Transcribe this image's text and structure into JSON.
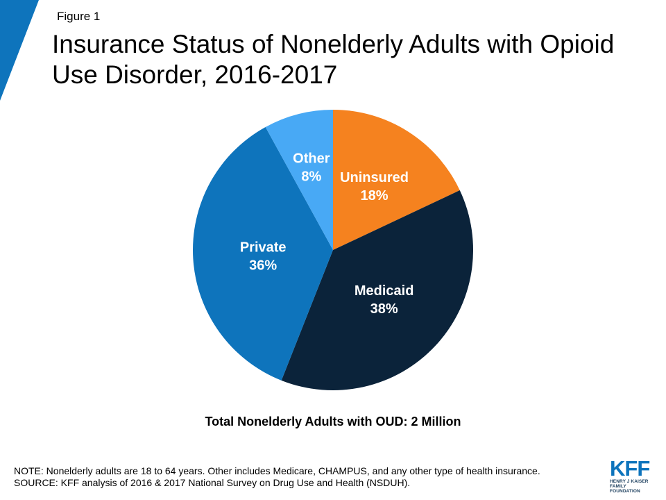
{
  "colors": {
    "accent": "#0e74bc",
    "uninsured": "#f5821f",
    "medicaid": "#0b233a",
    "private": "#0e74bc",
    "other": "#48a9f5"
  },
  "figure_label": "Figure 1",
  "chart_data": {
    "type": "pie",
    "title": "Insurance Status of Nonelderly Adults with Opioid Use Disorder, 2016-2017",
    "slices": [
      {
        "name": "Uninsured",
        "value": 18,
        "label": "18%",
        "color": "#f5821f"
      },
      {
        "name": "Medicaid",
        "value": 38,
        "label": "38%",
        "color": "#0b233a"
      },
      {
        "name": "Private",
        "value": 36,
        "label": "36%",
        "color": "#0e74bc"
      },
      {
        "name": "Other",
        "value": 8,
        "label": "8%",
        "color": "#48a9f5"
      }
    ],
    "start_angle": "12 o'clock",
    "direction": "clockwise",
    "legend": "none"
  },
  "total_label": "Total Nonelderly Adults with OUD: 2 Million",
  "notes": {
    "note": "NOTE: Nonelderly adults are 18 to 64 years. Other includes Medicare, CHAMPUS,  and any other type of health insurance.",
    "source": "SOURCE: KFF analysis of 2016 & 2017 National Survey on Drug Use and Health (NSDUH)."
  },
  "logo": {
    "mark": "KFF",
    "line1": "HENRY J KAISER",
    "line2": "FAMILY FOUNDATION"
  }
}
